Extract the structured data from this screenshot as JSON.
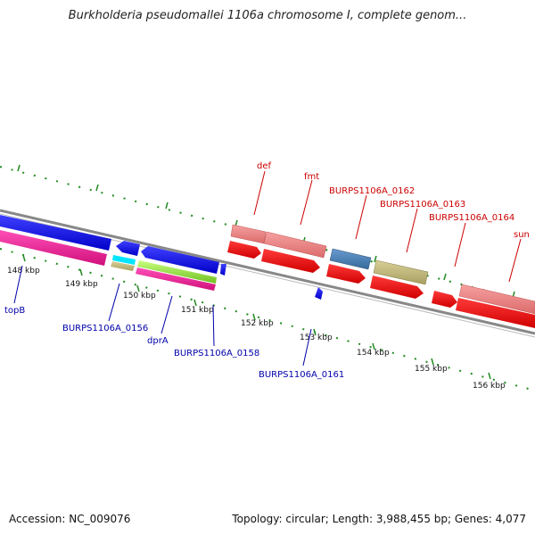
{
  "title": "Burkholderia pseudomallei 1106a chromosome I, complete genom...",
  "footer": {
    "accession": "Accession: NC_009076",
    "summary": "Topology: circular; Length: 3,988,455 bp; Genes: 4,077"
  },
  "ticks": [
    "148 kbp",
    "149 kbp",
    "150 kbp",
    "151 kbp",
    "152 kbp",
    "153 kbp",
    "154 kbp",
    "155 kbp",
    "156 kbp"
  ],
  "gene_labels": {
    "def": "def",
    "fmt": "fmt",
    "g0162": "BURPS1106A_0162",
    "g0163": "BURPS1106A_0163",
    "g0164": "BURPS1106A_0164",
    "sun": "sun",
    "topB": "topB",
    "g0156": "BURPS1106A_0156",
    "dprA": "dprA",
    "g0158": "BURPS1106A_0158",
    "g0161": "BURPS1106A_0161"
  },
  "colors": {
    "forward_label": "#cc0000",
    "reverse_label": "#0000aa",
    "backbone": "#808080",
    "tick": "#228B22"
  }
}
